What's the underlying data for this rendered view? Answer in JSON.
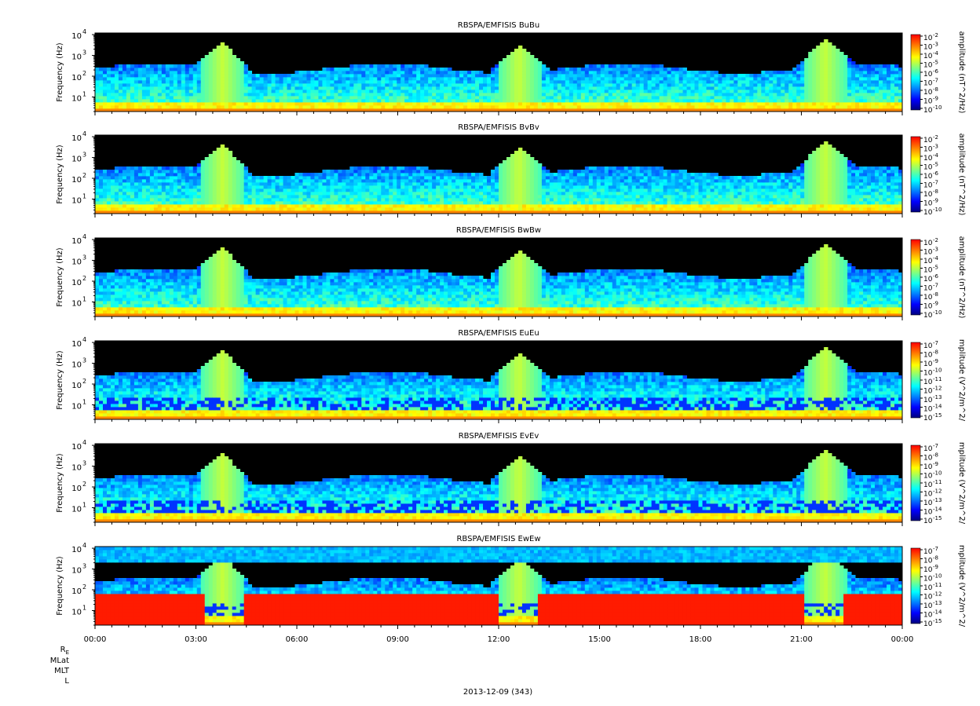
{
  "chart_data": [
    {
      "type": "heatmap",
      "title": "RBSPA/EMFISIS  BuBu",
      "ylabel": "Frequency (Hz)",
      "yscale": "log",
      "ylim": [
        2,
        12000
      ],
      "yticks": [
        "10",
        "10",
        "10",
        "10"
      ],
      "ytick_exponents": [
        "1",
        "2",
        "3",
        "4"
      ],
      "colorbar_label": "amplitude (nT^2/Hz)",
      "colorbar_scale": "log",
      "colorbar_ticks": [
        "10",
        "10",
        "10",
        "10",
        "10",
        "10",
        "10",
        "10",
        "10"
      ],
      "colorbar_exponents": [
        "-2",
        "-3",
        "-4",
        "-5",
        "-6",
        "-7",
        "-8",
        "-9",
        "-10"
      ]
    },
    {
      "type": "heatmap",
      "title": "RBSPA/EMFISIS  BvBv",
      "ylabel": "Frequency (Hz)",
      "yscale": "log",
      "ylim": [
        2,
        12000
      ],
      "yticks": [
        "10",
        "10",
        "10",
        "10"
      ],
      "ytick_exponents": [
        "1",
        "2",
        "3",
        "4"
      ],
      "colorbar_label": "amplitude (nT^2/Hz)",
      "colorbar_scale": "log",
      "colorbar_ticks": [
        "10",
        "10",
        "10",
        "10",
        "10",
        "10",
        "10",
        "10",
        "10"
      ],
      "colorbar_exponents": [
        "-2",
        "-3",
        "-4",
        "-5",
        "-6",
        "-7",
        "-8",
        "-9",
        "-10"
      ]
    },
    {
      "type": "heatmap",
      "title": "RBSPA/EMFISIS  BwBw",
      "ylabel": "Frequency (Hz)",
      "yscale": "log",
      "ylim": [
        2,
        12000
      ],
      "yticks": [
        "10",
        "10",
        "10",
        "10"
      ],
      "ytick_exponents": [
        "1",
        "2",
        "3",
        "4"
      ],
      "colorbar_label": "amplitude (nT^2/Hz)",
      "colorbar_scale": "log",
      "colorbar_ticks": [
        "10",
        "10",
        "10",
        "10",
        "10",
        "10",
        "10",
        "10",
        "10"
      ],
      "colorbar_exponents": [
        "-2",
        "-3",
        "-4",
        "-5",
        "-6",
        "-7",
        "-8",
        "-9",
        "-10"
      ]
    },
    {
      "type": "heatmap",
      "title": "RBSPA/EMFISIS  EuEu",
      "ylabel": "Frequency (Hz)",
      "yscale": "log",
      "ylim": [
        2,
        12000
      ],
      "yticks": [
        "10",
        "10",
        "10",
        "10"
      ],
      "ytick_exponents": [
        "1",
        "2",
        "3",
        "4"
      ],
      "colorbar_label": "mplitude (V^2/m^2/",
      "colorbar_scale": "log",
      "colorbar_ticks": [
        "10",
        "10",
        "10",
        "10",
        "10",
        "10",
        "10",
        "10",
        "10"
      ],
      "colorbar_exponents": [
        "-7",
        "-8",
        "-9",
        "-10",
        "-11",
        "-12",
        "-13",
        "-14",
        "-15"
      ]
    },
    {
      "type": "heatmap",
      "title": "RBSPA/EMFISIS  EvEv",
      "ylabel": "Frequency (Hz)",
      "yscale": "log",
      "ylim": [
        2,
        12000
      ],
      "yticks": [
        "10",
        "10",
        "10",
        "10"
      ],
      "ytick_exponents": [
        "1",
        "2",
        "3",
        "4"
      ],
      "colorbar_label": "mplitude (V^2/m^2/",
      "colorbar_scale": "log",
      "colorbar_ticks": [
        "10",
        "10",
        "10",
        "10",
        "10",
        "10",
        "10",
        "10",
        "10"
      ],
      "colorbar_exponents": [
        "-7",
        "-8",
        "-9",
        "-10",
        "-11",
        "-12",
        "-13",
        "-14",
        "-15"
      ]
    },
    {
      "type": "heatmap",
      "title": "RBSPA/EMFISIS  EwEw",
      "ylabel": "Frequency (Hz)",
      "yscale": "log",
      "ylim": [
        2,
        12000
      ],
      "yticks": [
        "10",
        "10",
        "10",
        "10"
      ],
      "ytick_exponents": [
        "1",
        "2",
        "3",
        "4"
      ],
      "colorbar_label": "mplitude (V^2/m^2/",
      "colorbar_scale": "log",
      "colorbar_ticks": [
        "10",
        "10",
        "10",
        "10",
        "10",
        "10",
        "10",
        "10",
        "10"
      ],
      "colorbar_exponents": [
        "-7",
        "-8",
        "-9",
        "-10",
        "-11",
        "-12",
        "-13",
        "-14",
        "-15"
      ]
    }
  ],
  "x_axis": {
    "ticks": [
      "00:00",
      "03:00",
      "06:00",
      "09:00",
      "12:00",
      "15:00",
      "18:00",
      "21:00",
      "00:00"
    ],
    "minor_per_major": 6
  },
  "ephemeris": {
    "re_base": "R",
    "re_sub": "E",
    "rows": [
      "MLat",
      "MLT",
      "L"
    ]
  },
  "date_label": "2013-12-09 (343)",
  "colors": {
    "colormap": [
      "#00007f",
      "#0000ff",
      "#0080ff",
      "#00ffff",
      "#80ff80",
      "#ffff00",
      "#ff8000",
      "#ff0000"
    ],
    "background": "#000000"
  }
}
